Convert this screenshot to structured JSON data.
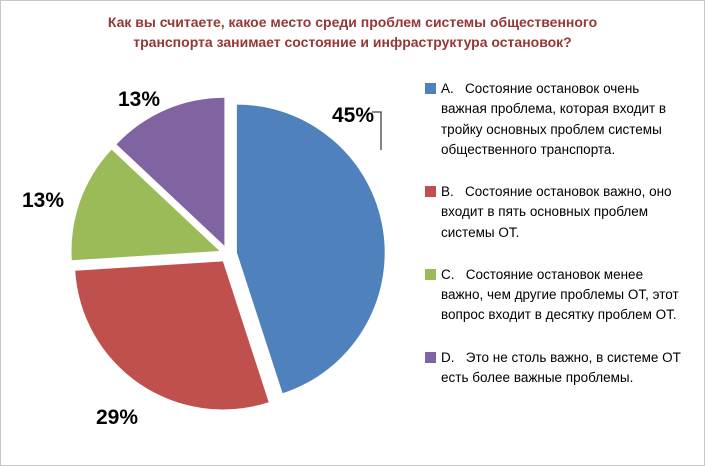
{
  "title": "Как вы считаете, какое место среди проблем системы общественного транспорта занимает состояние и инфраструктура остановок?",
  "title_color": "#953735",
  "chart_data": {
    "type": "pie",
    "title": "Как вы считаете, какое место среди проблем системы общественного транспорта занимает состояние и инфраструктура остановок?",
    "legend_position": "right",
    "start_angle_deg": 0,
    "direction": "clockwise",
    "exploded": true,
    "slices": [
      {
        "legend_key": "A.",
        "value": 45,
        "pct_label": "45%",
        "color": "#4F81BD",
        "legend_text": "Состояние остановок очень важная проблема, которая входит в тройку основных проблем системы общественного транспорта."
      },
      {
        "legend_key": "B.",
        "value": 29,
        "pct_label": "29%",
        "color": "#C0504D",
        "legend_text": "Состояние остановок важно, оно входит в пять основных проблем системы ОТ."
      },
      {
        "legend_key": "C.",
        "value": 13,
        "pct_label": "13%",
        "color": "#9BBB59",
        "legend_text": "Состояние остановок менее важно, чем другие проблемы ОТ, этот вопрос входит в десятку проблем ОТ."
      },
      {
        "legend_key": "D.",
        "value": 13,
        "pct_label": "13%",
        "color": "#8064A2",
        "legend_text": "Это не столь важно, в системе ОТ есть более важные проблемы."
      }
    ]
  }
}
